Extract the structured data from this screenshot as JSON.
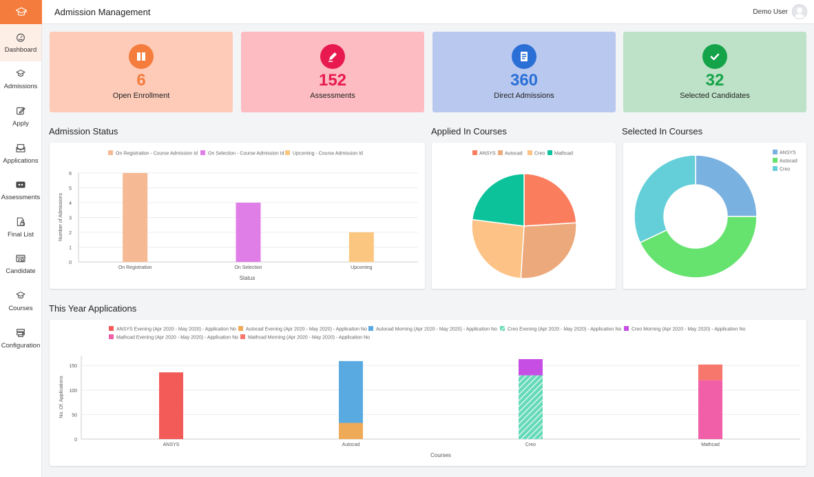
{
  "header": {
    "title": "Admission Management",
    "user_name": "Demo User"
  },
  "sidebar": {
    "items": [
      {
        "label": "Dashboard",
        "icon": "dashboard-icon",
        "active": true
      },
      {
        "label": "Admissions",
        "icon": "graduation-cap-icon"
      },
      {
        "label": "Apply",
        "icon": "edit-icon"
      },
      {
        "label": "Applications",
        "icon": "mail-icon"
      },
      {
        "label": "Assessments",
        "icon": "assessment-icon"
      },
      {
        "label": "Final List",
        "icon": "lock-list-icon"
      },
      {
        "label": "Candidate",
        "icon": "id-card-icon"
      },
      {
        "label": "Courses",
        "icon": "graduation-cap-icon"
      },
      {
        "label": "Configuration",
        "icon": "configuration-icon"
      }
    ]
  },
  "stats": [
    {
      "value": "6",
      "label": "Open Enrollment",
      "bg": "#fdcbb8",
      "accent": "#f47c3c",
      "icon": "book-icon"
    },
    {
      "value": "152",
      "label": "Assessments",
      "bg": "#fcbcc2",
      "accent": "#e8194e",
      "icon": "pen-icon"
    },
    {
      "value": "360",
      "label": "Direct Admissions",
      "bg": "#b9c8ef",
      "accent": "#2a6fd6",
      "icon": "document-icon"
    },
    {
      "value": "32",
      "label": "Selected Candidates",
      "bg": "#bde2c7",
      "accent": "#14a349",
      "icon": "check-icon"
    }
  ],
  "sections": {
    "admission_status": "Admission Status",
    "applied_courses": "Applied In Courses",
    "selected_courses": "Selected In Courses",
    "this_year": "This Year Applications"
  },
  "chart_data": [
    {
      "type": "bar",
      "categories": [
        "On Registration",
        "On Selection",
        "Upcoming"
      ],
      "series": [
        {
          "name": "On Registration - Course Admission Id",
          "color": "#f5b994",
          "values": [
            6,
            0,
            0
          ]
        },
        {
          "name": "On Selection - Course Admission Id",
          "color": "#e07ee8",
          "values": [
            0,
            4,
            0
          ]
        },
        {
          "name": "Upcoming - Course Admission Id",
          "color": "#fbc67f",
          "values": [
            0,
            0,
            2
          ]
        }
      ],
      "xlabel": "Status",
      "ylabel": "Number of Admissions",
      "ylim": [
        0,
        6
      ],
      "yticks": [
        0,
        1,
        2,
        3,
        4,
        5,
        6
      ],
      "legend": "top",
      "grid": true
    },
    {
      "type": "pie",
      "labels": [
        "ANSYS",
        "Autocad",
        "Creo",
        "Mathcad"
      ],
      "colors": [
        "#fa7d5e",
        "#eca97b",
        "#fdc285",
        "#0cc29b"
      ],
      "values": [
        24,
        27,
        26,
        23
      ],
      "legend": "top"
    },
    {
      "type": "pie",
      "donut": true,
      "labels": [
        "ANSYS",
        "Autocad",
        "Creo"
      ],
      "colors": [
        "#79b1e0",
        "#66e26f",
        "#64cfd8"
      ],
      "values": [
        25,
        43,
        32
      ],
      "legend": "top-right"
    },
    {
      "type": "bar",
      "stacked": true,
      "categories": [
        "ANSYS",
        "Autocad",
        "Creo",
        "Mathcad"
      ],
      "series": [
        {
          "name": "ANSYS Evening (Apr 2020 - May 2020) - Application No",
          "color": "#f25b57",
          "values": [
            136,
            0,
            0,
            0
          ]
        },
        {
          "name": "Autocad Evening (Apr 2020 - May 2020) - Application No",
          "color": "#eeaa57",
          "values": [
            0,
            33,
            0,
            0
          ]
        },
        {
          "name": "Autocad Morning (Apr 2020 - May 2020) - Application No",
          "color": "#5aaae2",
          "values": [
            0,
            126,
            0,
            0
          ]
        },
        {
          "name": "Creo Evening (Apr 2020 - May 2020) - Application No",
          "color": "#66dab9",
          "pattern": "hatch",
          "values": [
            0,
            0,
            130,
            0
          ]
        },
        {
          "name": "Creo Morning (Apr 2020 - May 2020) - Application No",
          "color": "#c74ee5",
          "values": [
            0,
            0,
            33,
            0
          ]
        },
        {
          "name": "Mathcad Evening (Apr 2020 - May 2020) - Application No",
          "color": "#f15fa8",
          "values": [
            0,
            0,
            0,
            120
          ]
        },
        {
          "name": "Mathcad Morning (Apr 2020 - May 2020) - Application No",
          "color": "#f8776d",
          "values": [
            0,
            0,
            0,
            32
          ]
        }
      ],
      "xlabel": "Courses",
      "ylabel": "No. Of. Applications",
      "ylim": [
        0,
        170
      ],
      "yticks": [
        0,
        50,
        100,
        150
      ],
      "legend": "top",
      "grid": true
    }
  ]
}
